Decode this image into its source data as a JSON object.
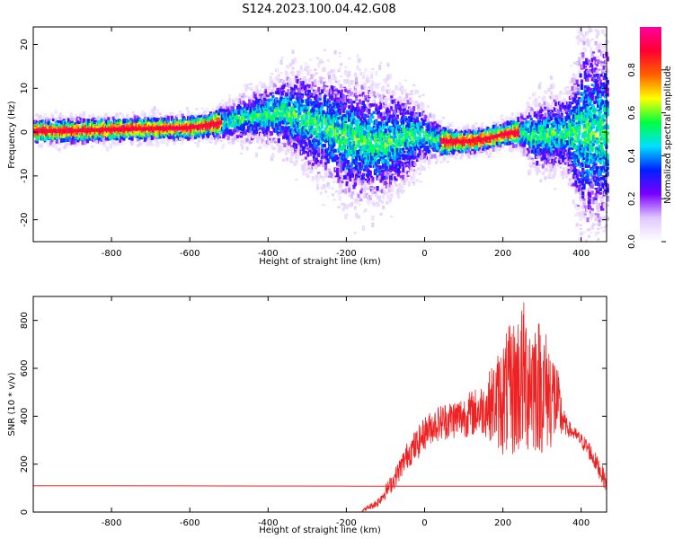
{
  "title": "S124.2023.100.04.42.G08",
  "chart_data": [
    {
      "type": "heatmap",
      "xlabel": "Height of straight line (km)",
      "ylabel": "Frequency (Hz)",
      "xlim": [
        -1000,
        465
      ],
      "ylim": [
        -25,
        24
      ],
      "xticks": [
        -800,
        -600,
        -400,
        -200,
        0,
        200,
        400
      ],
      "yticks": [
        -20,
        -10,
        0,
        10,
        20
      ],
      "colorbar": {
        "label": "Normalized spectral amplitude",
        "range": [
          0,
          1
        ],
        "ticks": [
          "0.0",
          "0.2",
          "0.4",
          "0.6",
          "0.8"
        ],
        "colormap": [
          "#ffffff",
          "#e0c8ff",
          "#7a00ff",
          "#0020ff",
          "#00e0ff",
          "#00ff40",
          "#ffff00",
          "#ff6000",
          "#ff0030",
          "#ff00a0"
        ]
      },
      "ridge": {
        "x": [
          -1000,
          -900,
          -800,
          -700,
          -600,
          -560,
          -520,
          -480,
          -440,
          -400,
          -360,
          -320,
          -280,
          -240,
          -200,
          -160,
          -120,
          -80,
          -40,
          0,
          40,
          80,
          120,
          160,
          200,
          240,
          280,
          320,
          360,
          400
        ],
        "freq": [
          0.2,
          0.3,
          0.6,
          0.8,
          1.0,
          1.5,
          2.2,
          3.0,
          3.5,
          4.0,
          4.5,
          3.5,
          2.0,
          0.5,
          -1.0,
          -2.0,
          -3.0,
          -2.0,
          -0.5,
          -1.0,
          -2.0,
          -2.2,
          -2.0,
          -1.5,
          -0.5,
          0.0,
          -1.0,
          -0.5,
          0.0,
          0.0
        ],
        "spread": [
          3,
          3,
          3,
          3,
          3,
          3,
          4,
          5,
          6,
          7,
          9,
          11,
          12,
          13,
          14,
          14,
          13,
          12,
          10,
          6,
          4,
          3,
          3,
          3,
          3,
          4,
          8,
          9,
          9,
          22
        ]
      }
    },
    {
      "type": "line",
      "xlabel": "Height of straight line (km)",
      "ylabel": "SNR (10 * v/v)",
      "xlim": [
        -1000,
        465
      ],
      "ylim": [
        0,
        900
      ],
      "xticks": [
        -800,
        -600,
        -400,
        -200,
        0,
        200,
        400
      ],
      "yticks": [
        0,
        200,
        400,
        600,
        800
      ],
      "series": [
        {
          "color": "#ee2222",
          "x": [
            -1000,
            -600,
            -170,
            -140,
            -100,
            -70,
            -40,
            -20,
            0,
            20,
            50,
            100,
            150,
            200,
            230,
            250,
            270,
            300,
            330,
            360,
            380,
            400,
            420,
            440,
            465
          ],
          "y": [
            110,
            109,
            108,
            108,
            108,
            108,
            108,
            108,
            108,
            108,
            108,
            108,
            108,
            108,
            108,
            108,
            108,
            108,
            108,
            108,
            108,
            108,
            108,
            108,
            108
          ]
        },
        {
          "color": "#ee2222",
          "x": [
            -160,
            -120,
            -80,
            -60,
            -40,
            -20,
            0,
            20,
            50,
            100,
            150,
            180,
            200,
            230,
            250,
            270,
            300,
            330,
            360,
            380,
            400,
            420,
            440,
            465
          ],
          "y": [
            5,
            40,
            130,
            190,
            250,
            280,
            330,
            360,
            380,
            400,
            430,
            460,
            480,
            520,
            560,
            560,
            520,
            480,
            360,
            330,
            300,
            260,
            200,
            120
          ],
          "amp": [
            5,
            20,
            40,
            50,
            60,
            70,
            70,
            70,
            80,
            90,
            110,
            180,
            250,
            300,
            330,
            320,
            280,
            220,
            40,
            30,
            30,
            40,
            40,
            40
          ]
        }
      ]
    }
  ]
}
